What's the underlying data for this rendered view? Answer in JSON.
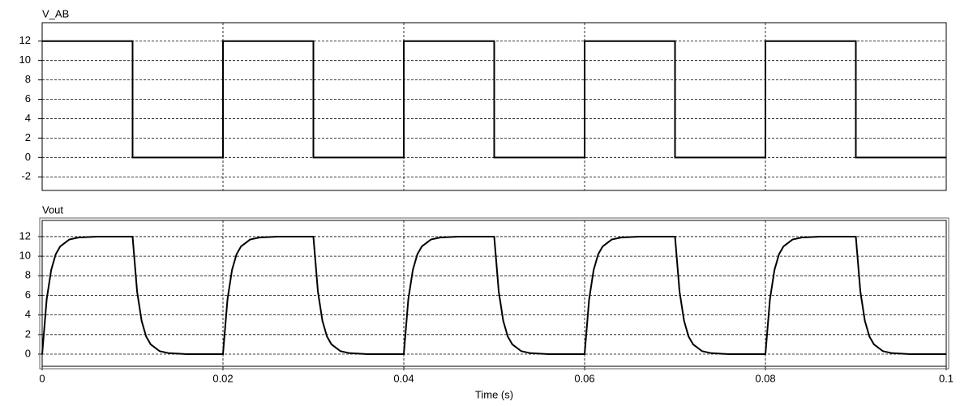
{
  "chart_data": [
    {
      "type": "line",
      "title": "V_AB",
      "color": "#000000",
      "grid": true,
      "x": [
        0,
        0.01,
        0.01,
        0.02,
        0.02,
        0.03,
        0.03,
        0.04,
        0.04,
        0.05,
        0.05,
        0.06,
        0.06,
        0.07,
        0.07,
        0.08,
        0.08,
        0.09,
        0.09,
        0.1
      ],
      "values": [
        12,
        12,
        0,
        0,
        12,
        12,
        0,
        0,
        12,
        12,
        0,
        0,
        12,
        12,
        0,
        0,
        12,
        12,
        0,
        0
      ],
      "xlim": [
        0,
        0.1
      ],
      "xticks": [
        0,
        0.02,
        0.04,
        0.06,
        0.08,
        0.1
      ],
      "ylim": [
        -3.4,
        13.9
      ],
      "yticks": [
        -2,
        0,
        2,
        4,
        6,
        8,
        10,
        12
      ]
    },
    {
      "type": "line",
      "title": "Vout",
      "color": "#000000",
      "grid": true,
      "xlabel": "Time (s)",
      "x": [
        0,
        0.0005,
        0.001,
        0.0015,
        0.002,
        0.003,
        0.004,
        0.006,
        0.01,
        0.0105,
        0.011,
        0.0115,
        0.012,
        0.013,
        0.014,
        0.016,
        0.02,
        0.0205,
        0.021,
        0.0215,
        0.022,
        0.023,
        0.024,
        0.026,
        0.03,
        0.0305,
        0.031,
        0.0315,
        0.032,
        0.033,
        0.034,
        0.036,
        0.04,
        0.0405,
        0.041,
        0.0415,
        0.042,
        0.043,
        0.044,
        0.046,
        0.05,
        0.0505,
        0.051,
        0.0515,
        0.052,
        0.053,
        0.054,
        0.056,
        0.06,
        0.0605,
        0.061,
        0.0615,
        0.062,
        0.063,
        0.064,
        0.066,
        0.07,
        0.0705,
        0.071,
        0.0715,
        0.072,
        0.073,
        0.074,
        0.076,
        0.08,
        0.0805,
        0.081,
        0.0815,
        0.082,
        0.083,
        0.084,
        0.086,
        0.09,
        0.0905,
        0.091,
        0.0915,
        0.092,
        0.093,
        0.094,
        0.096,
        0.1
      ],
      "values": [
        0,
        5.6,
        8.6,
        10.2,
        11,
        11.7,
        11.9,
        12,
        12,
        6.4,
        3.4,
        1.8,
        1,
        0.3,
        0.1,
        0,
        0,
        5.6,
        8.6,
        10.2,
        11,
        11.7,
        11.9,
        12,
        12,
        6.4,
        3.4,
        1.8,
        1,
        0.3,
        0.1,
        0,
        0,
        5.6,
        8.6,
        10.2,
        11,
        11.7,
        11.9,
        12,
        12,
        6.4,
        3.4,
        1.8,
        1,
        0.3,
        0.1,
        0,
        0,
        5.6,
        8.6,
        10.2,
        11,
        11.7,
        11.9,
        12,
        12,
        6.4,
        3.4,
        1.8,
        1,
        0.3,
        0.1,
        0,
        0,
        5.6,
        8.6,
        10.2,
        11,
        11.7,
        11.9,
        12,
        12,
        6.4,
        3.4,
        1.8,
        1,
        0.3,
        0.1,
        0,
        0
      ],
      "xlim": [
        0,
        0.1
      ],
      "xticks": [
        0,
        0.02,
        0.04,
        0.06,
        0.08,
        0.1
      ],
      "ylim": [
        -1.24,
        13.65
      ],
      "yticks": [
        0,
        2,
        4,
        6,
        8,
        10,
        12
      ]
    }
  ]
}
